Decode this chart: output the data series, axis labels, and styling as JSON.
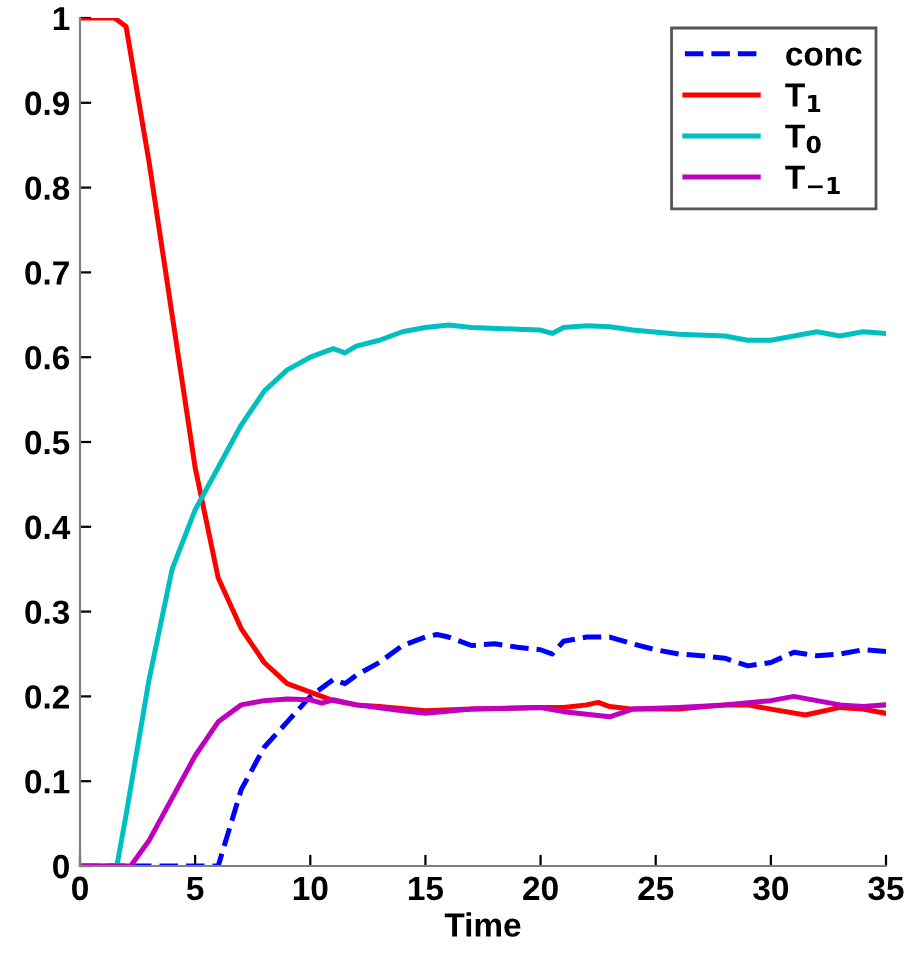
{
  "chart_data": {
    "type": "line",
    "xlabel": "Time",
    "xlim": [
      0,
      35
    ],
    "xticks": [
      0,
      5,
      10,
      15,
      20,
      25,
      30,
      35
    ],
    "ylim": [
      0,
      1
    ],
    "yticks": [
      0,
      0.1,
      0.2,
      0.3,
      0.4,
      0.5,
      0.6,
      0.7,
      0.8,
      0.9,
      1
    ],
    "grid": false,
    "legend": "top right",
    "series": [
      {
        "name": "conc",
        "color": "#0000ff",
        "line_style": "dashed",
        "x": [
          0,
          6,
          7,
          8,
          9,
          10,
          11,
          11.5,
          12,
          13,
          14,
          15,
          15.5,
          16,
          17,
          18,
          19,
          20,
          20.5,
          21,
          22,
          23,
          24,
          25,
          26,
          27,
          28,
          29,
          30,
          31,
          32,
          33,
          34,
          35
        ],
        "values": [
          0,
          0,
          0.09,
          0.14,
          0.17,
          0.2,
          0.22,
          0.215,
          0.225,
          0.24,
          0.26,
          0.27,
          0.273,
          0.27,
          0.26,
          0.262,
          0.258,
          0.255,
          0.25,
          0.265,
          0.27,
          0.27,
          0.262,
          0.255,
          0.25,
          0.248,
          0.245,
          0.236,
          0.24,
          0.252,
          0.248,
          0.25,
          0.255,
          0.253
        ]
      },
      {
        "name": "T$_{1}$",
        "color": "#ff0000",
        "line_style": "solid",
        "x": [
          0,
          1.5,
          2,
          3,
          4,
          5,
          6,
          7,
          8,
          9,
          10,
          11,
          12,
          13,
          15,
          17,
          20,
          21,
          22,
          22.5,
          23,
          24,
          26,
          28,
          29,
          30,
          31.5,
          33,
          34,
          35
        ],
        "values": [
          1,
          1,
          0.99,
          0.83,
          0.65,
          0.47,
          0.34,
          0.28,
          0.24,
          0.215,
          0.205,
          0.195,
          0.19,
          0.188,
          0.183,
          0.185,
          0.187,
          0.187,
          0.19,
          0.193,
          0.188,
          0.185,
          0.185,
          0.19,
          0.19,
          0.185,
          0.178,
          0.187,
          0.185,
          0.18
        ]
      },
      {
        "name": "T$_{0}$",
        "color": "#00bfbf",
        "line_style": "solid",
        "x": [
          0,
          1.6,
          2,
          3,
          4,
          5,
          6,
          7,
          8,
          9,
          10,
          11,
          11.5,
          12,
          13,
          14,
          15,
          16,
          17,
          19,
          20,
          20.5,
          21,
          22,
          23,
          24,
          26,
          28,
          29,
          30,
          31,
          32,
          33,
          34,
          35
        ],
        "values": [
          0,
          0,
          0.06,
          0.22,
          0.35,
          0.42,
          0.47,
          0.52,
          0.56,
          0.585,
          0.6,
          0.61,
          0.605,
          0.613,
          0.62,
          0.63,
          0.635,
          0.638,
          0.635,
          0.633,
          0.632,
          0.628,
          0.635,
          0.637,
          0.636,
          0.632,
          0.627,
          0.625,
          0.62,
          0.62,
          0.625,
          0.63,
          0.625,
          0.63,
          0.628
        ]
      },
      {
        "name": "T$_{−1}$",
        "color": "#bf00bf",
        "line_style": "solid",
        "x": [
          0,
          2.2,
          3,
          4,
          5,
          6,
          7,
          8,
          9,
          10,
          10.5,
          11,
          12,
          14,
          15,
          17,
          20,
          21,
          23,
          24,
          26,
          28,
          30,
          31,
          32,
          33,
          34,
          35
        ],
        "values": [
          0,
          0,
          0.03,
          0.08,
          0.13,
          0.17,
          0.19,
          0.195,
          0.197,
          0.196,
          0.192,
          0.196,
          0.19,
          0.183,
          0.18,
          0.185,
          0.187,
          0.182,
          0.176,
          0.185,
          0.187,
          0.19,
          0.195,
          0.2,
          0.195,
          0.19,
          0.188,
          0.19
        ]
      }
    ]
  }
}
